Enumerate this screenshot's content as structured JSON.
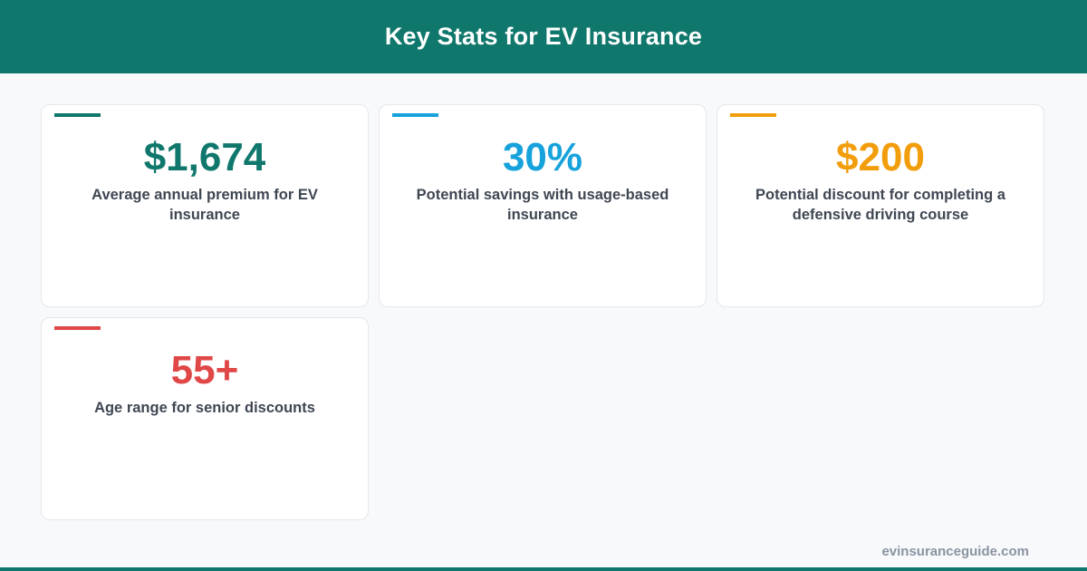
{
  "header": {
    "title": "Key Stats for EV Insurance"
  },
  "colors": {
    "brand": "#10776d",
    "teal": "#10776d",
    "blue": "#17a2dc",
    "amber": "#f29d0b",
    "red": "#e04747"
  },
  "stats": [
    {
      "value": "$1,674",
      "description": "Average annual premium for EV insurance",
      "color": "#10776d"
    },
    {
      "value": "30%",
      "description": "Potential savings with usage-based insurance",
      "color": "#17a2dc"
    },
    {
      "value": "$200",
      "description": "Potential discount for completing a defensive driving course",
      "color": "#f29d0b"
    },
    {
      "value": "55+",
      "description": "Age range for senior discounts",
      "color": "#e04747"
    }
  ],
  "footer": {
    "url": "evinsuranceguide.com"
  }
}
